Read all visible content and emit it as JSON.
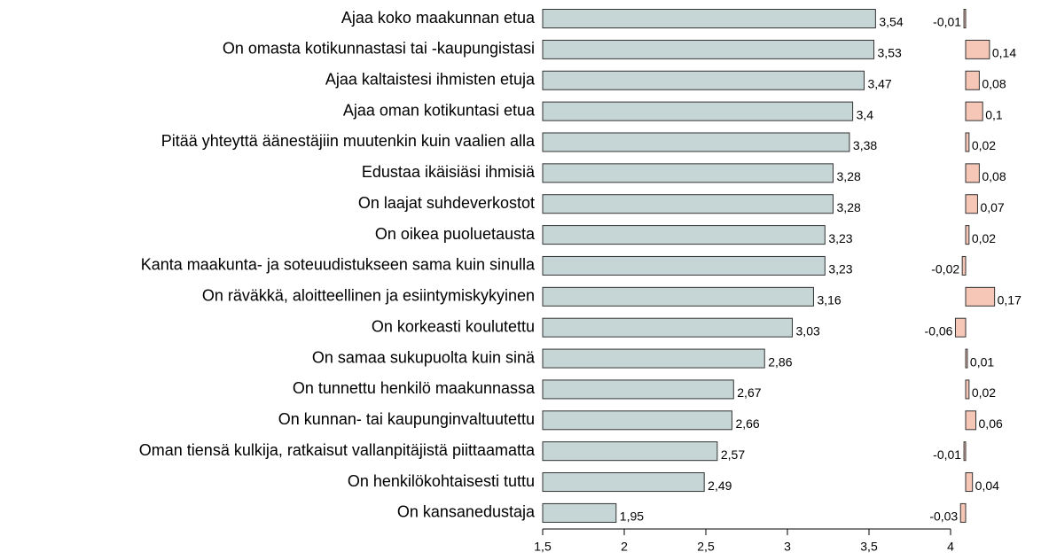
{
  "chart_data": [
    {
      "type": "hbar",
      "categories": [
        "Ajaa koko maakunnan etua",
        "On omasta kotikunnastasi tai -kaupungistasi",
        "Ajaa kaltaistesi ihmisten etuja",
        "Ajaa oman kotikuntasi etua",
        "Pitää yhteyttä äänestäjiin muutenkin kuin vaalien alla",
        "Edustaa ikäisiäsi ihmisiä",
        "On laajat suhdeverkostot",
        "On oikea puoluetausta",
        "Kanta maakunta- ja soteuudistukseen sama kuin sinulla",
        "On räväkkä, aloitteellinen ja esiintymiskykyinen",
        "On korkeasti koulutettu",
        "On samaa sukupuolta kuin sinä",
        "On tunnettu henkilö maakunnassa",
        "On kunnan- tai kaupunginvaltuutettu",
        "Oman tiensä kulkija, ratkaisut vallanpitäjistä piittaamatta",
        "On henkilökohtaisesti tuttu",
        "On kansanedustaja"
      ],
      "values": [
        3.54,
        3.53,
        3.47,
        3.4,
        3.38,
        3.28,
        3.28,
        3.23,
        3.23,
        3.16,
        3.03,
        2.86,
        2.67,
        2.66,
        2.57,
        2.49,
        1.95
      ],
      "value_labels": [
        "3,54",
        "3,53",
        "3,47",
        "3,4",
        "3,38",
        "3,28",
        "3,28",
        "3,23",
        "3,23",
        "3,16",
        "3,03",
        "2,86",
        "2,67",
        "2,66",
        "2,57",
        "2,49",
        "1,95"
      ],
      "color": "#c6d6d6",
      "xlim": [
        1.5,
        4
      ],
      "xticks": [
        {
          "value": 1.5,
          "label": "1,5"
        },
        2,
        {
          "value": 2.5,
          "label": "2,5"
        },
        3,
        {
          "value": 3.5,
          "label": "3,5"
        },
        4
      ]
    },
    {
      "type": "change",
      "values": [
        -0.01,
        0.14,
        0.08,
        0.1,
        0.02,
        0.08,
        0.07,
        0.02,
        -0.02,
        0.17,
        -0.06,
        0.01,
        0.02,
        0.06,
        -0.01,
        0.04,
        -0.03
      ],
      "value_labels": [
        "-0,01",
        "0,14",
        "0,08",
        "0,1",
        "0,02",
        "0,08",
        "0,07",
        "0,02",
        "-0,02",
        "0,17",
        "-0,06",
        "0,01",
        "0,02",
        "0,06",
        "-0,01",
        "0,04",
        "-0,03"
      ],
      "color": "#f6c6b6"
    }
  ]
}
